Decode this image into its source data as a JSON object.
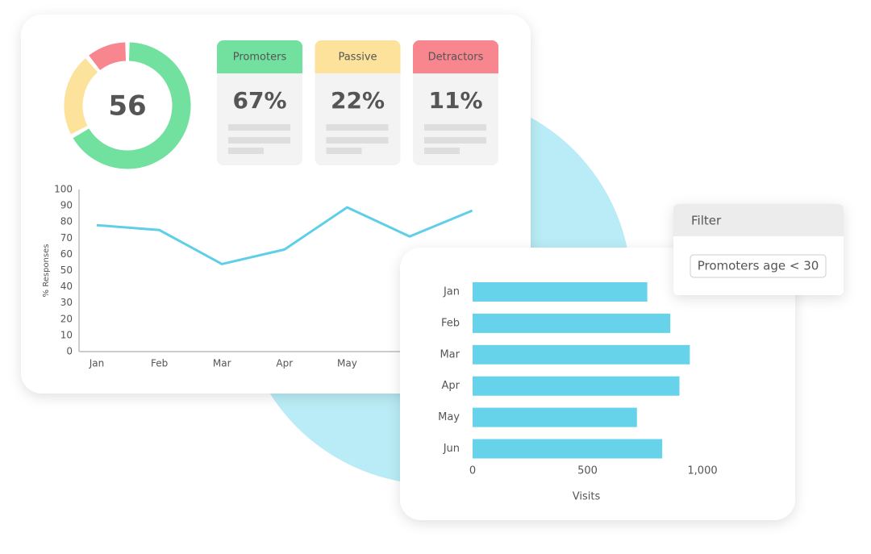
{
  "chart_data": [
    {
      "type": "pie",
      "score": 56,
      "categories": [
        "Promoters",
        "Passive",
        "Detractors"
      ],
      "values": [
        67,
        22,
        11
      ],
      "value_labels": [
        "67%",
        "22%",
        "11%"
      ],
      "colors": [
        "#72e09e",
        "#fde29c",
        "#f8868e"
      ]
    },
    {
      "type": "line",
      "y_label": "% Responses",
      "categories": [
        "Jan",
        "Feb",
        "Mar",
        "Apr",
        "May",
        null,
        null
      ],
      "series": [
        {
          "color": "#5fcfe7",
          "values": [
            78,
            75,
            54,
            63,
            89,
            71,
            87
          ]
        }
      ],
      "ylim": [
        0,
        100
      ],
      "yticks": [
        0,
        10,
        20,
        30,
        40,
        50,
        60,
        70,
        80,
        90,
        100
      ]
    },
    {
      "type": "hbar",
      "x_label": "Visits",
      "categories": [
        "Jan",
        "Feb",
        "Mar",
        "Apr",
        "May",
        "Jun"
      ],
      "values": [
        760,
        860,
        945,
        900,
        715,
        825
      ],
      "color": "#66d3ea",
      "xlim": [
        0,
        1000
      ],
      "xticks": [
        0,
        500,
        {
          "value": 1000,
          "label": "1,000"
        }
      ]
    }
  ],
  "filter": {
    "title": "Filter",
    "chip": "Promoters age < 30"
  }
}
